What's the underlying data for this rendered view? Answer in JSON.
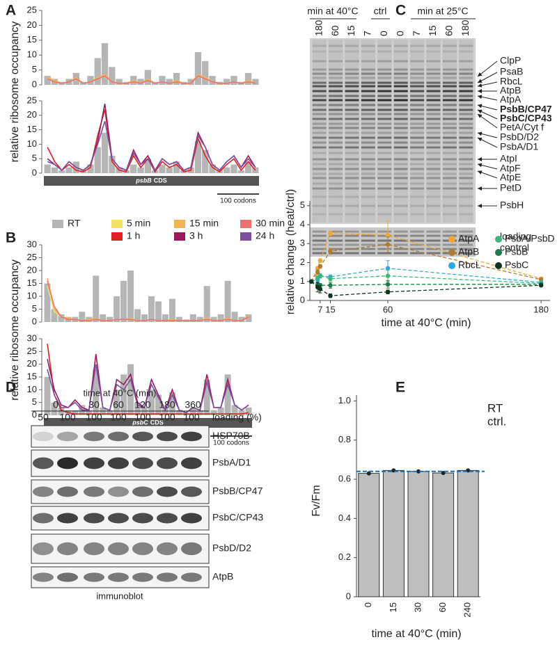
{
  "panel_labels": [
    "A",
    "B",
    "C",
    "D",
    "E"
  ],
  "chart_data": [
    {
      "type": "profile",
      "ylabel": "relative ribosome occupancy",
      "ylim": [
        0,
        25
      ],
      "yticks": [
        0,
        5,
        10,
        15,
        20,
        25
      ],
      "series": [
        {
          "name": "RT",
          "style": "bar",
          "color": "#b5b5b5",
          "values": [
            3,
            2,
            1,
            2,
            4,
            1,
            3,
            9,
            14,
            6,
            2,
            1,
            3,
            2,
            5,
            1,
            3,
            2,
            4,
            1,
            2,
            11,
            8,
            3,
            1,
            2,
            3,
            1,
            4,
            2
          ]
        },
        {
          "name": "5 min",
          "style": "line",
          "color": "#f2e266",
          "values": [
            2,
            1,
            0.5,
            1,
            2,
            0.5,
            1,
            2,
            3,
            1,
            0.5,
            0.5,
            1,
            0.5,
            2,
            0.5,
            1,
            0.5,
            1,
            0.5,
            0.5,
            3,
            2,
            1,
            0.5,
            0.5,
            1,
            0.5,
            1,
            0.5
          ]
        },
        {
          "name": "15 min",
          "style": "line",
          "color": "#f4b455",
          "values": [
            2.5,
            1.5,
            0.5,
            1,
            2.5,
            0.5,
            1,
            2.5,
            3.5,
            1,
            0.5,
            0.5,
            1.5,
            0.5,
            2,
            0.5,
            1,
            0.5,
            1.5,
            0.5,
            0.5,
            3.5,
            2.5,
            1,
            0.5,
            0.5,
            1,
            0.5,
            1.5,
            0.5
          ]
        },
        {
          "name": "30 min",
          "style": "line",
          "color": "#ec7272",
          "values": [
            2,
            1,
            0.5,
            1,
            2,
            0.5,
            1,
            2,
            3,
            1,
            0.5,
            0.5,
            1,
            0.5,
            1.5,
            0.5,
            1,
            0.5,
            1,
            0.5,
            0.5,
            3,
            2,
            1,
            0.5,
            0.5,
            1,
            0.5,
            1,
            0.5
          ]
        }
      ]
    },
    {
      "type": "profile",
      "ylim": [
        0,
        25
      ],
      "yticks": [
        0,
        5,
        10,
        15,
        20,
        25
      ],
      "cds_gene": "psbB",
      "cds_label": "CDS",
      "scale_label": "100 codons",
      "series": [
        {
          "style": "bar",
          "color": "#b5b5b5",
          "values": [
            3,
            2,
            1,
            2,
            4,
            1,
            3,
            9,
            14,
            6,
            2,
            1,
            3,
            2,
            5,
            1,
            3,
            2,
            4,
            1,
            2,
            11,
            8,
            3,
            1,
            2,
            3,
            1,
            4,
            2
          ]
        },
        {
          "name": "1 h",
          "style": "line",
          "color": "#e02020",
          "values": [
            9,
            4,
            1,
            3,
            1,
            0.5,
            2,
            13,
            22,
            4,
            1,
            0.5,
            6,
            2,
            5,
            0.5,
            4,
            2,
            3,
            0.5,
            1,
            12,
            6,
            2,
            0.5,
            3,
            5,
            1,
            4,
            1
          ]
        },
        {
          "name": "3 h",
          "style": "line",
          "color": "#9c1a5a",
          "values": [
            5,
            3,
            1,
            4,
            2,
            1,
            3,
            11,
            24,
            5,
            2,
            1,
            8,
            3,
            6,
            1,
            5,
            3,
            4,
            1,
            2,
            14,
            9,
            3,
            1,
            4,
            6,
            2,
            6,
            2
          ]
        },
        {
          "name": "24 h",
          "style": "line",
          "color": "#7b4fa0",
          "values": [
            4,
            3,
            1,
            4,
            2,
            1,
            3,
            10,
            18,
            5,
            2,
            1,
            7,
            3,
            5,
            1,
            5,
            3,
            4,
            1,
            2,
            13,
            9,
            3,
            1,
            4,
            6,
            2,
            5,
            2
          ]
        }
      ]
    },
    {
      "type": "profile",
      "ylabel": "relative ribosome occupancy",
      "ylim": [
        0,
        30
      ],
      "yticks": [
        0,
        5,
        10,
        15,
        20,
        25,
        30
      ],
      "series": [
        {
          "style": "bar",
          "color": "#b5b5b5",
          "values": [
            15,
            5,
            3,
            2,
            2,
            4,
            2,
            18,
            3,
            2,
            10,
            16,
            20,
            5,
            3,
            10,
            8,
            3,
            9,
            2,
            1,
            3,
            2,
            14,
            2,
            3,
            16,
            4,
            2,
            3
          ]
        },
        {
          "style": "line",
          "color": "#f2e266",
          "values": [
            14,
            4,
            2,
            1.5,
            1,
            0.5,
            0.5,
            1,
            0.5,
            0.5,
            1,
            1,
            1,
            0.5,
            0.5,
            1,
            0.5,
            0.5,
            0.5,
            0.5,
            0.5,
            0.5,
            0.5,
            1,
            0.5,
            0.5,
            1,
            0.5,
            0.5,
            2
          ]
        },
        {
          "style": "line",
          "color": "#f4b455",
          "values": [
            17,
            5,
            2,
            1.5,
            1,
            0.5,
            1,
            1.5,
            0.5,
            0.5,
            1,
            1,
            1.5,
            0.5,
            0.5,
            1,
            0.5,
            0.5,
            1,
            0.5,
            0.5,
            0.5,
            0.5,
            1.5,
            0.5,
            0.5,
            1.5,
            0.5,
            0.5,
            2.5
          ]
        },
        {
          "style": "line",
          "color": "#ec7272",
          "values": [
            16,
            6,
            2,
            1,
            1,
            0.5,
            0.5,
            1,
            0.5,
            0.5,
            1,
            1,
            1,
            0.5,
            0.5,
            1,
            0.5,
            0.5,
            0.5,
            0.5,
            0.5,
            0.5,
            0.5,
            1,
            0.5,
            0.5,
            1,
            0.5,
            0.5,
            2
          ]
        }
      ]
    },
    {
      "type": "profile",
      "ylim": [
        0,
        30
      ],
      "yticks": [
        0,
        5,
        10,
        15,
        20,
        25,
        30
      ],
      "cds_gene": "psbC",
      "cds_label": "CDS",
      "scale_label": "100 codons",
      "series": [
        {
          "style": "bar",
          "color": "#b5b5b5",
          "values": [
            15,
            5,
            3,
            2,
            2,
            4,
            2,
            18,
            3,
            2,
            10,
            16,
            20,
            5,
            3,
            10,
            8,
            3,
            9,
            2,
            1,
            3,
            2,
            14,
            2,
            3,
            16,
            4,
            2,
            3
          ]
        },
        {
          "style": "line",
          "color": "#e02020",
          "values": [
            28,
            8,
            2,
            1,
            0.5,
            0.5,
            0.5,
            0.5,
            0.5,
            0.5,
            0.5,
            0.5,
            0.5,
            0.5,
            0.5,
            0.5,
            0.5,
            0.5,
            0.5,
            0.5,
            0.5,
            0.5,
            0.5,
            0.5,
            0.5,
            0.5,
            0.5,
            0.5,
            0.5,
            1
          ]
        },
        {
          "style": "line",
          "color": "#9c1a5a",
          "values": [
            22,
            10,
            4,
            3,
            6,
            3,
            2,
            24,
            3,
            2,
            14,
            12,
            16,
            5,
            3,
            14,
            8,
            2,
            10,
            2,
            1,
            3,
            2,
            16,
            3,
            3,
            14,
            4,
            2,
            4
          ]
        },
        {
          "style": "line",
          "color": "#7b4fa0",
          "values": [
            18,
            8,
            3,
            3,
            5,
            2,
            2,
            20,
            3,
            2,
            12,
            10,
            14,
            4,
            3,
            12,
            7,
            2,
            8,
            2,
            1,
            3,
            2,
            13,
            3,
            3,
            12,
            4,
            2,
            4
          ]
        }
      ]
    },
    {
      "type": "line",
      "ylabel": "relative change (heat/ctrl)",
      "xlabel": "time at 40°C (min)",
      "x": [
        0,
        5,
        7,
        15,
        60,
        180
      ],
      "xlim": [
        0,
        187
      ],
      "ylim": [
        0,
        5.25
      ],
      "xticks": [
        7,
        15,
        60,
        180
      ],
      "yticks": [
        0,
        1,
        2,
        3,
        4,
        5
      ],
      "series": [
        {
          "name": "AtpA",
          "color": "#f0a830",
          "values": [
            1,
            1.7,
            2.1,
            3.55,
            3.45,
            1.15
          ],
          "errors": [
            0,
            0.1,
            0.1,
            0.12,
            0.75,
            0.08
          ]
        },
        {
          "name": "AtpB",
          "color": "#b07a30",
          "values": [
            1,
            1.5,
            1.8,
            2.6,
            2.95,
            1.1
          ],
          "errors": [
            0,
            0.12,
            0.1,
            0.15,
            0.4,
            0.05
          ]
        },
        {
          "name": "RbcL",
          "color": "#2ea8e0",
          "values": [
            1,
            1.1,
            1.3,
            1.25,
            1.7,
            0.95
          ],
          "errors": [
            0,
            0.12,
            0.12,
            0.1,
            0.4,
            0.05
          ]
        },
        {
          "name": "PsbA/PsbD",
          "color": "#3cb878",
          "values": [
            1,
            1.2,
            1.3,
            1.15,
            1.3,
            0.9
          ],
          "errors": [
            0,
            0.1,
            0.1,
            0.12,
            0.3,
            0.05
          ]
        },
        {
          "name": "PsbB",
          "color": "#1f7a48",
          "values": [
            1,
            0.85,
            0.8,
            0.8,
            0.85,
            0.85
          ],
          "errors": [
            0,
            0.1,
            0.1,
            0.15,
            0.2,
            0.05
          ]
        },
        {
          "name": "PsbC",
          "color": "#0f3520",
          "values": [
            1,
            0.7,
            0.6,
            0.25,
            0.45,
            0.8
          ],
          "errors": [
            0,
            0.25,
            0.2,
            0.1,
            0.1,
            0.05
          ]
        }
      ]
    },
    {
      "type": "bar",
      "ylabel": "Fv/Fm",
      "xlabel": "time at 40°C (min)",
      "categories": [
        "0",
        "15",
        "30",
        "60",
        "240"
      ],
      "values": [
        0.63,
        0.645,
        0.64,
        0.632,
        0.645
      ],
      "color": "#bebebe",
      "ylim": [
        0,
        1.03
      ],
      "yticks": [
        0,
        0.2,
        0.4,
        0.6,
        0.8,
        {
          "value": 1,
          "label": "1.0"
        }
      ],
      "reference": 0.64,
      "reference_color": "#1f6fae",
      "reference_label": [
        "RT",
        "ctrl."
      ]
    }
  ],
  "gel": {
    "group_headers": [
      "min at 40°C",
      "ctrl",
      "min at 25°C"
    ],
    "lanes": [
      "180",
      "60",
      "15",
      "7",
      "0",
      "0",
      "7",
      "15",
      "60",
      "180"
    ],
    "bands": [
      {
        "label": "ClpP"
      },
      {
        "label": "PsaB"
      },
      {
        "label": "RbcL"
      },
      {
        "label": "AtpB"
      },
      {
        "label": "AtpA"
      },
      {
        "label": "PsbB/CP47",
        "bold": true
      },
      {
        "label": "PsbC/CP43",
        "bold": true
      },
      {
        "label": "PetA/Cyt f"
      },
      {
        "label": "PsbD/D2"
      },
      {
        "label": "PsbA/D1"
      },
      {
        "label": "AtpI"
      },
      {
        "label": "AtpF"
      },
      {
        "label": "AtpE"
      },
      {
        "label": "PetD"
      },
      {
        "label": "PsbH"
      }
    ],
    "loading_label": [
      "loading",
      "control"
    ]
  },
  "blot": {
    "header": "time at 40°C (min)",
    "times": [
      "0",
      "30",
      "60",
      "120",
      "180",
      "360"
    ],
    "loading_label": "loading (%)",
    "loading": [
      "50",
      "100",
      "100",
      "100",
      "100",
      "100",
      "100"
    ],
    "rows": [
      "HSP70B",
      "PsbA/D1",
      "PsbB/CP47",
      "PsbC/CP43",
      "PsbD/D2",
      "AtpB"
    ],
    "footer": "immunoblot"
  }
}
